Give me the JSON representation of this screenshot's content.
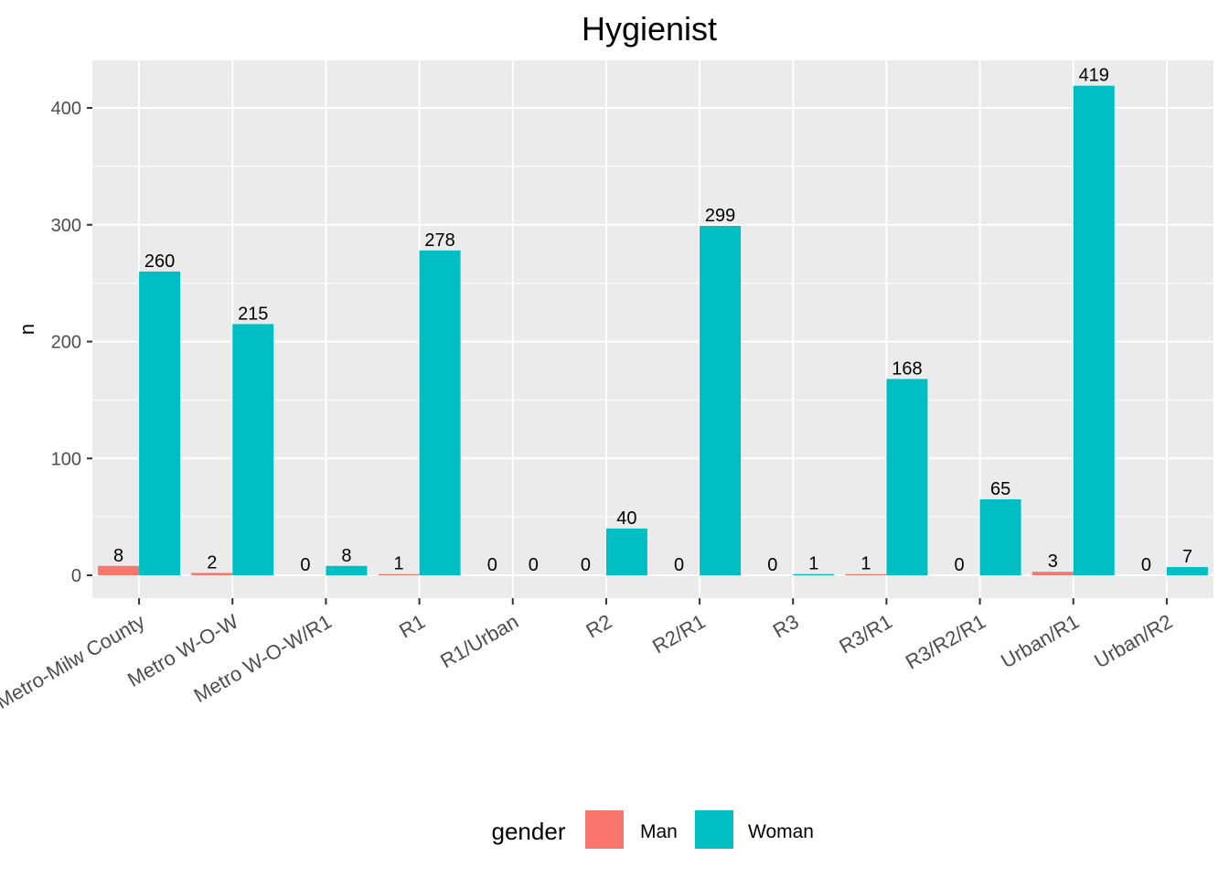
{
  "chart_data": {
    "type": "bar",
    "title": "Hygienist",
    "xlabel": "",
    "ylabel": "n",
    "categories": [
      "Metro-Milw County",
      "Metro W-O-W",
      "Metro W-O-W/R1",
      "R1",
      "R1/Urban",
      "R2",
      "R2/R1",
      "R3",
      "R3/R1",
      "R3/R2/R1",
      "Urban/R1",
      "Urban/R2"
    ],
    "series": [
      {
        "name": "Man",
        "color": "#F8766D",
        "values": [
          8,
          2,
          0,
          1,
          0,
          0,
          0,
          0,
          1,
          0,
          3,
          0
        ]
      },
      {
        "name": "Woman",
        "color": "#00BFC4",
        "values": [
          260,
          215,
          8,
          278,
          0,
          40,
          299,
          1,
          168,
          65,
          419,
          7
        ]
      }
    ],
    "yticks": [
      0,
      100,
      200,
      300,
      400
    ],
    "ylim": [
      -19,
      440
    ],
    "grid": true,
    "legend": {
      "title": "gender",
      "position": "bottom"
    }
  }
}
